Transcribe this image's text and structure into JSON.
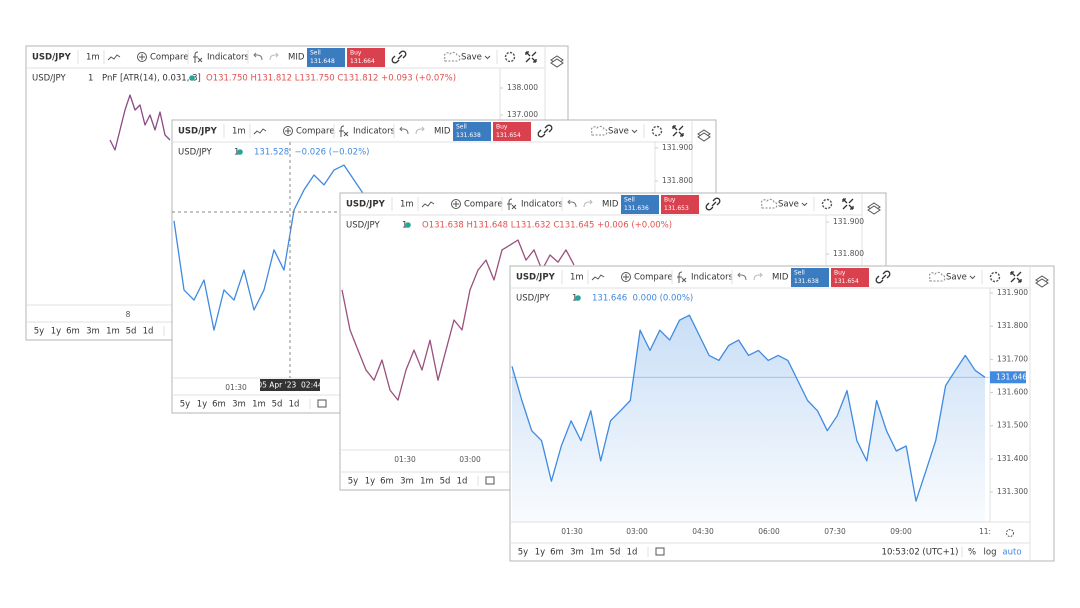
{
  "windows": [
    {
      "symbol": "USD/JPY",
      "interval": "1m",
      "compare": "Compare",
      "indicators": "Indicators",
      "mid": "MID",
      "sell_label": "Sell",
      "sell": "131.648",
      "buy_label": "Buy",
      "buy": "131.664",
      "save": "Save",
      "legend_symbol": "USD/JPY",
      "legend_interval": "1",
      "study": "PnF [ATR(14), 0.031, 3]",
      "legend_values": "O131.750 H131.812 L131.750 C131.812 +0.093 (+0.07%)",
      "chart": {
        "type": "line",
        "color": "#8a4a86",
        "ylim": [
          129.963,
          138.741
        ],
        "yticks": [
          {
            "value": 138,
            "label": "138.000"
          },
          {
            "value": 137,
            "label": "137.000"
          }
        ],
        "values": [
          136.074,
          135.704,
          136.444,
          137.185,
          137.741,
          137.185,
          137.37,
          136.63,
          137.0,
          136.444,
          137.111,
          136.259,
          136.074
        ]
      },
      "xticks": [
        "8"
      ],
      "ranges": [
        "5y",
        "1y",
        "6m",
        "3m",
        "1m",
        "5d",
        "1d"
      ]
    },
    {
      "symbol": "USD/JPY",
      "interval": "1m",
      "compare": "Compare",
      "indicators": "Indicators",
      "mid": "MID",
      "sell_label": "Sell",
      "sell": "131.638",
      "buy_label": "Buy",
      "buy": "131.654",
      "save": "Save",
      "legend_symbol": "USD/JPY",
      "legend_interval": "1",
      "legend_values": "131.528  −0.026 (−0.02%)",
      "chart": {
        "type": "line",
        "color": "#3f8ae0",
        "ylim": [
          131.203,
          131.918
        ],
        "yticks": [
          {
            "value": 131.9,
            "label": "131.900"
          },
          {
            "value": 131.8,
            "label": "131.800"
          }
        ],
        "values": [
          131.679,
          131.47,
          131.439,
          131.5,
          131.348,
          131.47,
          131.439,
          131.53,
          131.409,
          131.47,
          131.591,
          131.53,
          131.712,
          131.773,
          131.818,
          131.788,
          131.833,
          131.848,
          131.803,
          131.758
        ]
      },
      "xticks": [
        "01:30"
      ],
      "crosshair_label": "05 Apr '23  02:44",
      "ranges": [
        "5y",
        "1y",
        "6m",
        "3m",
        "1m",
        "5d",
        "1d"
      ]
    },
    {
      "symbol": "USD/JPY",
      "interval": "1m",
      "compare": "Compare",
      "indicators": "Indicators",
      "mid": "MID",
      "sell_label": "Sell",
      "sell": "131.636",
      "buy_label": "Buy",
      "buy": "131.653",
      "save": "Save",
      "legend_symbol": "USD/JPY",
      "legend_interval": "1",
      "legend_values": "O131.638 H131.648 L131.632 C131.645 +0.006 (+0.00%)",
      "chart": {
        "type": "line",
        "color": "#9a4f7c",
        "ylim": [
          131.188,
          131.922
        ],
        "yticks": [
          {
            "value": 131.9,
            "label": "131.900"
          },
          {
            "value": 131.8,
            "label": "131.800"
          }
        ],
        "values": [
          131.688,
          131.563,
          131.5,
          131.438,
          131.406,
          131.469,
          131.375,
          131.344,
          131.438,
          131.5,
          131.438,
          131.531,
          131.406,
          131.5,
          131.594,
          131.563,
          131.688,
          131.75,
          131.781,
          131.719,
          131.813,
          131.828,
          131.844,
          131.781,
          131.813,
          131.75,
          131.797,
          131.775,
          131.813,
          131.766
        ]
      },
      "xticks": [
        "01:30",
        "03:00"
      ],
      "ranges": [
        "5y",
        "1y",
        "6m",
        "3m",
        "1m",
        "5d",
        "1d"
      ]
    },
    {
      "symbol": "USD/JPY",
      "interval": "1m",
      "compare": "Compare",
      "indicators": "Indicators",
      "mid": "MID",
      "sell_label": "Sell",
      "sell": "131.638",
      "buy_label": "Buy",
      "buy": "131.654",
      "save": "Save",
      "legend_symbol": "USD/JPY",
      "legend_interval": "1",
      "legend_values": "131.646  0.000 (0.00%)",
      "chart": {
        "type": "area",
        "color": "#3f8ae0",
        "ylim": [
          131.21,
          131.915
        ],
        "price_tag": 131.646,
        "yticks": [
          {
            "value": 131.9,
            "label": "131.900"
          },
          {
            "value": 131.8,
            "label": "131.800"
          },
          {
            "value": 131.7,
            "label": "131.700"
          },
          {
            "value": 131.6,
            "label": "131.600"
          },
          {
            "value": 131.5,
            "label": "131.500"
          },
          {
            "value": 131.4,
            "label": "131.400"
          },
          {
            "value": 131.3,
            "label": "131.300"
          }
        ],
        "values": [
          131.679,
          131.576,
          131.485,
          131.455,
          131.333,
          131.439,
          131.515,
          131.455,
          131.545,
          131.394,
          131.515,
          131.545,
          131.576,
          131.788,
          131.727,
          131.788,
          131.758,
          131.818,
          131.833,
          131.773,
          131.712,
          131.697,
          131.742,
          131.758,
          131.712,
          131.727,
          131.697,
          131.712,
          131.697,
          131.636,
          131.576,
          131.545,
          131.485,
          131.53,
          131.606,
          131.455,
          131.394,
          131.576,
          131.485,
          131.424,
          131.439,
          131.273,
          131.364,
          131.455,
          131.621,
          131.667,
          131.712,
          131.667,
          131.646
        ]
      },
      "xticks": [
        "01:30",
        "03:00",
        "04:30",
        "06:00",
        "07:30",
        "09:00",
        "11:"
      ],
      "ranges": [
        "5y",
        "1y",
        "6m",
        "3m",
        "1m",
        "5d",
        "1d"
      ],
      "clock": "10:53:02 (UTC+1)",
      "percent": "%",
      "log": "log",
      "auto": "auto"
    }
  ]
}
